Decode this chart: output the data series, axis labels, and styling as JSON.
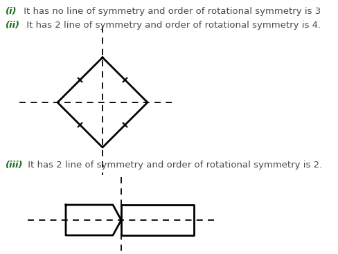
{
  "bg_color": "#ffffff",
  "text_color_roman": "#1a6b1a",
  "text_color_body": "#4a4a4a",
  "line1_roman": "(i)",
  "line1_body": " It has no line of symmetry and order of rotational symmetry is 3",
  "line2_roman": "(ii)",
  "line2_body": " It has 2 line of symmetry and order of rotational symmetry is 4.",
  "line3_roman": "(iii)",
  "line3_body": " It has 2 line of symmetry and order of rotational symmetry is 2.",
  "dash_color": "#000000",
  "shape_color": "#000000",
  "font_size": 9.5
}
